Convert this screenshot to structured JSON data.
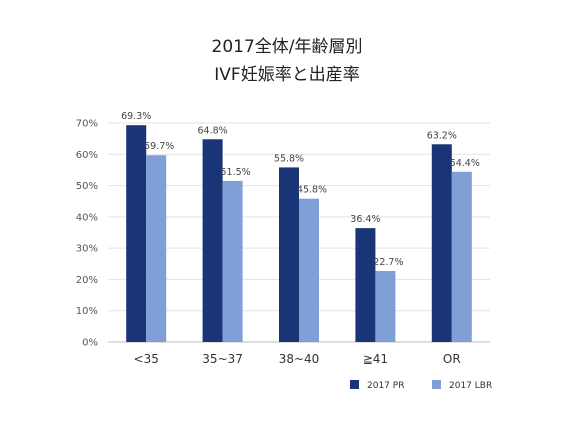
{
  "chart_data": {
    "type": "bar",
    "title_lines": [
      "2017全体/年齢層別",
      "IVF妊娠率と出産率"
    ],
    "categories": [
      "<35",
      "35~37",
      "38~40",
      "≧41",
      "OR"
    ],
    "series": [
      {
        "name": "2017 PR",
        "values": [
          69.3,
          64.8,
          55.8,
          36.4,
          63.2
        ],
        "labels": [
          "69.3%",
          "64.8%",
          "55.8%",
          "36.4%",
          "63.2%"
        ],
        "color": "#1a3478"
      },
      {
        "name": "2017 LBR",
        "values": [
          59.7,
          51.5,
          45.8,
          22.7,
          54.4
        ],
        "labels": [
          "59.7%",
          "51.5%",
          "45.8%",
          "22.7%",
          "54.4%"
        ],
        "color": "#7f9fd6"
      }
    ],
    "y_ticks": [
      "0%",
      "10%",
      "20%",
      "30%",
      "40%",
      "50%",
      "60%",
      "70%"
    ],
    "ylim": [
      0,
      70
    ],
    "grid": true,
    "legend_position": "bottom-right"
  }
}
